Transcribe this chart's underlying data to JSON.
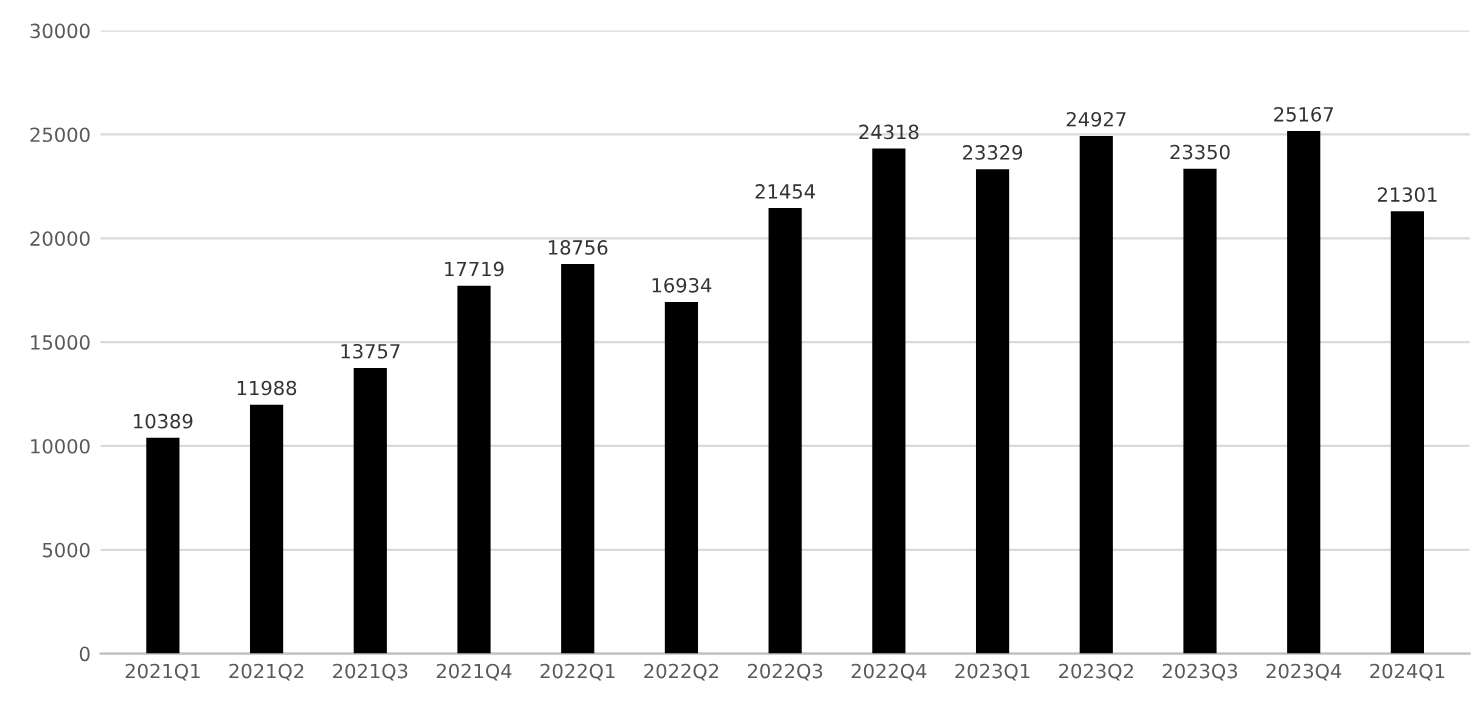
{
  "chart_data": {
    "type": "bar",
    "categories": [
      "2021Q1",
      "2021Q2",
      "2021Q3",
      "2021Q4",
      "2022Q1",
      "2022Q2",
      "2022Q3",
      "2022Q4",
      "2023Q1",
      "2023Q2",
      "2023Q3",
      "2023Q4",
      "2024Q1"
    ],
    "values": [
      10389,
      11988,
      13757,
      17719,
      18756,
      16934,
      21454,
      24318,
      23329,
      24927,
      23350,
      25167,
      21301
    ],
    "color": "#000000",
    "ylim": [
      0,
      30000
    ],
    "yticks": [
      0,
      5000,
      10000,
      15000,
      20000,
      25000,
      30000
    ],
    "grid": "y",
    "data_labels": true
  }
}
